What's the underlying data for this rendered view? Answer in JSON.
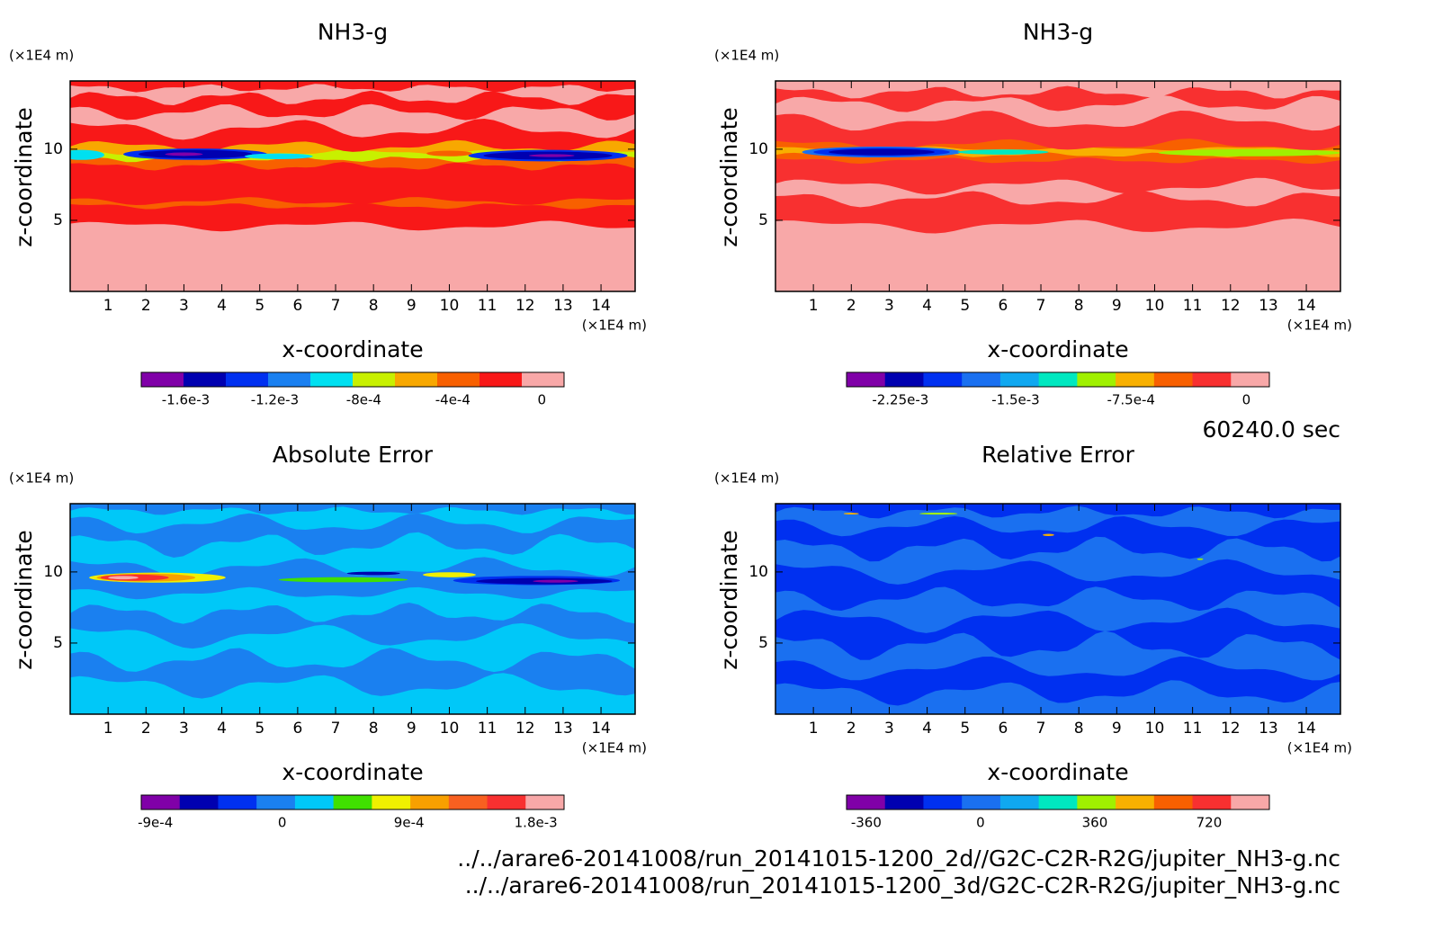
{
  "chart_data": [
    {
      "type": "contour",
      "title": "NH3-g",
      "x_label": "x-coordinate",
      "y_label": "z-coordinate",
      "x_unit": "(×1E4 m)",
      "y_unit": "(×1E4 m)",
      "xlim": [
        0,
        14.9
      ],
      "ylim": [
        0,
        14.8
      ],
      "xticks": [
        1,
        2,
        3,
        4,
        5,
        6,
        7,
        8,
        9,
        10,
        11,
        12,
        13,
        14
      ],
      "yticks": [
        5,
        10
      ],
      "colorbar": {
        "lim": [
          -0.0018,
          0.0001
        ],
        "colors": [
          "#8000a8",
          "#0000b0",
          "#0030f0",
          "#1a80f0",
          "#00e0f0",
          "#c8f000",
          "#f8a800",
          "#f86000",
          "#f81818",
          "#f8a8a8"
        ],
        "ticks": [
          {
            "value": -0.0016,
            "label": "-1.6e-3"
          },
          {
            "value": -0.0012,
            "label": "-1.2e-3"
          },
          {
            "value": -0.0008,
            "label": "-8e-4"
          },
          {
            "value": -0.0004,
            "label": "-4e-4"
          },
          0
        ]
      }
    },
    {
      "type": "contour",
      "title": "NH3-g",
      "x_label": "x-coordinate",
      "y_label": "z-coordinate",
      "x_unit": "(×1E4 m)",
      "y_unit": "(×1E4 m)",
      "xlim": [
        0,
        14.9
      ],
      "ylim": [
        0,
        14.8
      ],
      "xticks": [
        1,
        2,
        3,
        4,
        5,
        6,
        7,
        8,
        9,
        10,
        11,
        12,
        13,
        14
      ],
      "yticks": [
        5,
        10
      ],
      "colorbar": {
        "lim": [
          -0.0026,
          0.00015
        ],
        "colors": [
          "#8000a8",
          "#0000b0",
          "#0030f0",
          "#1a70f0",
          "#10a8f0",
          "#00e8c0",
          "#a0f000",
          "#f8b000",
          "#f86000",
          "#f83030",
          "#f8a8a8"
        ],
        "ticks": [
          {
            "value": -0.00225,
            "label": "-2.25e-3"
          },
          {
            "value": -0.0015,
            "label": "-1.5e-3"
          },
          {
            "value": -0.00075,
            "label": "-7.5e-4"
          },
          0
        ]
      }
    },
    {
      "type": "contour",
      "title": "Absolute Error",
      "x_label": "x-coordinate",
      "y_label": "z-coordinate",
      "x_unit": "(×1E4 m)",
      "y_unit": "(×1E4 m)",
      "xlim": [
        0,
        14.9
      ],
      "ylim": [
        0,
        14.8
      ],
      "xticks": [
        1,
        2,
        3,
        4,
        5,
        6,
        7,
        8,
        9,
        10,
        11,
        12,
        13,
        14
      ],
      "yticks": [
        5,
        10
      ],
      "colorbar": {
        "lim": [
          -0.001,
          0.002
        ],
        "colors": [
          "#8000a8",
          "#0000b0",
          "#0030f0",
          "#1a80f0",
          "#00c8f8",
          "#40e000",
          "#f0f000",
          "#f8a000",
          "#f86020",
          "#f83030",
          "#f8a8a8"
        ],
        "ticks": [
          {
            "value": -0.0009,
            "label": "-9e-4"
          },
          0,
          {
            "value": 0.0009,
            "label": "9e-4"
          },
          {
            "value": 0.0018,
            "label": "1.8e-3"
          }
        ]
      }
    },
    {
      "type": "contour",
      "title": "Relative Error",
      "x_label": "x-coordinate",
      "y_label": "z-coordinate",
      "x_unit": "(×1E4 m)",
      "y_unit": "(×1E4 m)",
      "xlim": [
        0,
        14.9
      ],
      "ylim": [
        0,
        14.8
      ],
      "xticks": [
        1,
        2,
        3,
        4,
        5,
        6,
        7,
        8,
        9,
        10,
        11,
        12,
        13,
        14
      ],
      "yticks": [
        5,
        10
      ],
      "colorbar": {
        "lim": [
          -422,
          910
        ],
        "colors": [
          "#8000a8",
          "#0000b0",
          "#0030f0",
          "#1a70f0",
          "#10a8f0",
          "#00e8c0",
          "#a0f000",
          "#f8b000",
          "#f86000",
          "#f83030",
          "#f8a8a8"
        ],
        "ticks": [
          -360,
          0,
          360,
          720
        ]
      }
    }
  ],
  "time_label": "60240.0 sec",
  "files": [
    "../../arare6-20141008/run_20141015-1200_2d//G2C-C2R-R2G/jupiter_NH3-g.nc",
    "../../arare6-20141008/run_20141015-1200_3d/G2C-C2R-R2G/jupiter_NH3-g.nc"
  ]
}
